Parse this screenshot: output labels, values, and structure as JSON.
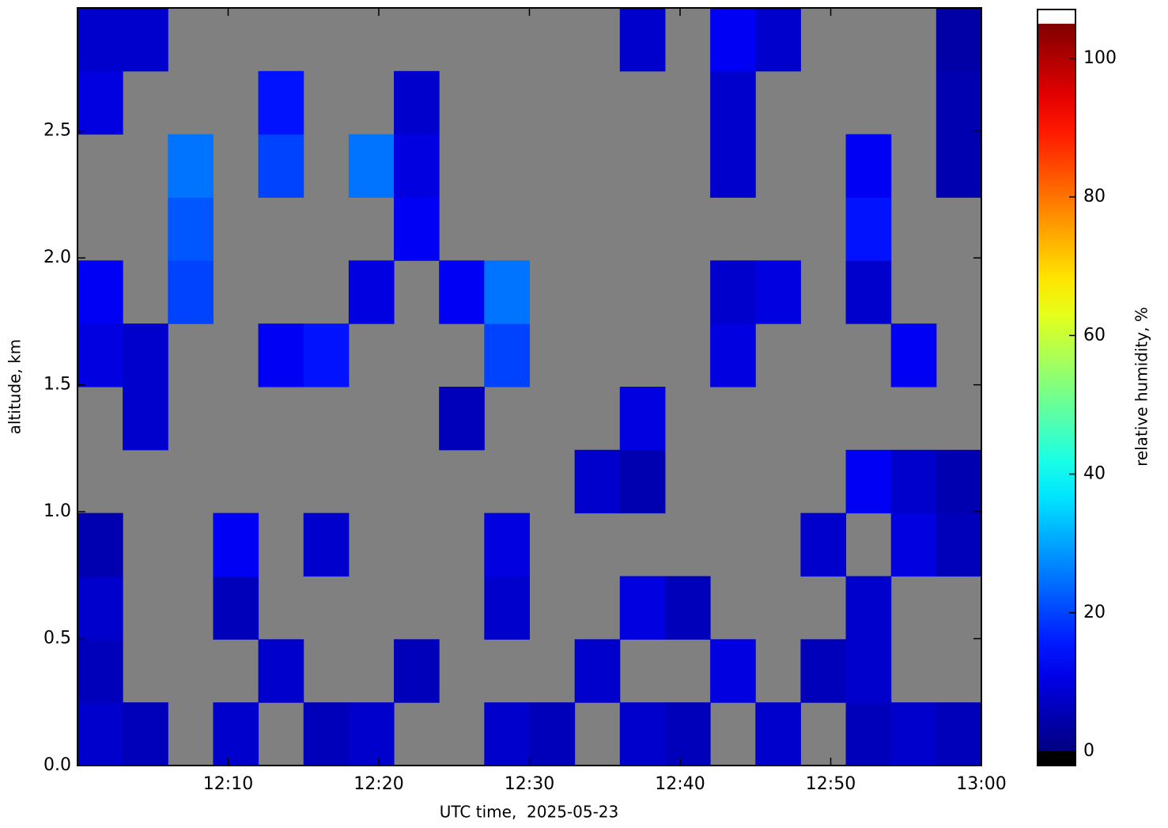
{
  "chart_data": {
    "type": "heatmap",
    "x_label": "UTC time,  2025-05-23",
    "y_label": "altitude, km",
    "xlim": [
      "12:00",
      "13:00"
    ],
    "xticks": [
      "12:10",
      "12:20",
      "12:30",
      "12:40",
      "12:50",
      "13:00"
    ],
    "ylim": [
      0,
      2.985
    ],
    "yticks": [
      {
        "value": 0,
        "label": "0.0"
      },
      0.5,
      {
        "value": 1,
        "label": "1.0"
      },
      1.5,
      {
        "value": 2,
        "label": "2.0"
      },
      2.5
    ],
    "colorbar_label": "relative humidity, %",
    "clim": [
      0,
      105
    ],
    "cticks": [
      0,
      20,
      40,
      60,
      80,
      100
    ],
    "colormap": "jet",
    "missing_color": "#808080",
    "under_color": "#000000",
    "over_color": "#ffffff",
    "values": [
      [
        8,
        6,
        null,
        8,
        null,
        6,
        8,
        null,
        null,
        8,
        6,
        null,
        8,
        6,
        null,
        8,
        null,
        6,
        8,
        6
      ],
      [
        6,
        null,
        null,
        null,
        8,
        null,
        null,
        6,
        null,
        null,
        null,
        8,
        null,
        null,
        10,
        null,
        6,
        8,
        null,
        null
      ],
      [
        8,
        null,
        null,
        6,
        null,
        null,
        null,
        null,
        null,
        8,
        null,
        null,
        10,
        6,
        null,
        null,
        null,
        8,
        null,
        null
      ],
      [
        5,
        null,
        null,
        12,
        null,
        8,
        null,
        null,
        null,
        10,
        null,
        null,
        null,
        null,
        null,
        null,
        8,
        null,
        10,
        6
      ],
      [
        null,
        null,
        null,
        null,
        null,
        null,
        null,
        null,
        null,
        null,
        null,
        8,
        5,
        null,
        null,
        null,
        null,
        12,
        8,
        5
      ],
      [
        null,
        8,
        null,
        null,
        null,
        null,
        null,
        null,
        6,
        null,
        null,
        null,
        10,
        null,
        null,
        null,
        null,
        null,
        null,
        null
      ],
      [
        10,
        8,
        null,
        null,
        12,
        15,
        null,
        null,
        null,
        20,
        null,
        null,
        null,
        null,
        10,
        null,
        null,
        null,
        12,
        null
      ],
      [
        12,
        null,
        20,
        null,
        null,
        null,
        10,
        null,
        12,
        25,
        null,
        null,
        null,
        null,
        8,
        10,
        null,
        8,
        null,
        null
      ],
      [
        null,
        null,
        22,
        null,
        null,
        null,
        null,
        12,
        null,
        null,
        null,
        null,
        null,
        null,
        null,
        null,
        null,
        15,
        null,
        null
      ],
      [
        null,
        null,
        25,
        null,
        20,
        null,
        25,
        10,
        null,
        null,
        null,
        null,
        null,
        null,
        8,
        null,
        null,
        12,
        null,
        5
      ],
      [
        10,
        null,
        null,
        null,
        15,
        null,
        null,
        8,
        null,
        null,
        null,
        null,
        null,
        null,
        8,
        null,
        null,
        null,
        null,
        5
      ],
      [
        8,
        8,
        null,
        null,
        null,
        null,
        null,
        null,
        null,
        null,
        null,
        null,
        8,
        null,
        12,
        8,
        null,
        null,
        null,
        4
      ]
    ]
  }
}
